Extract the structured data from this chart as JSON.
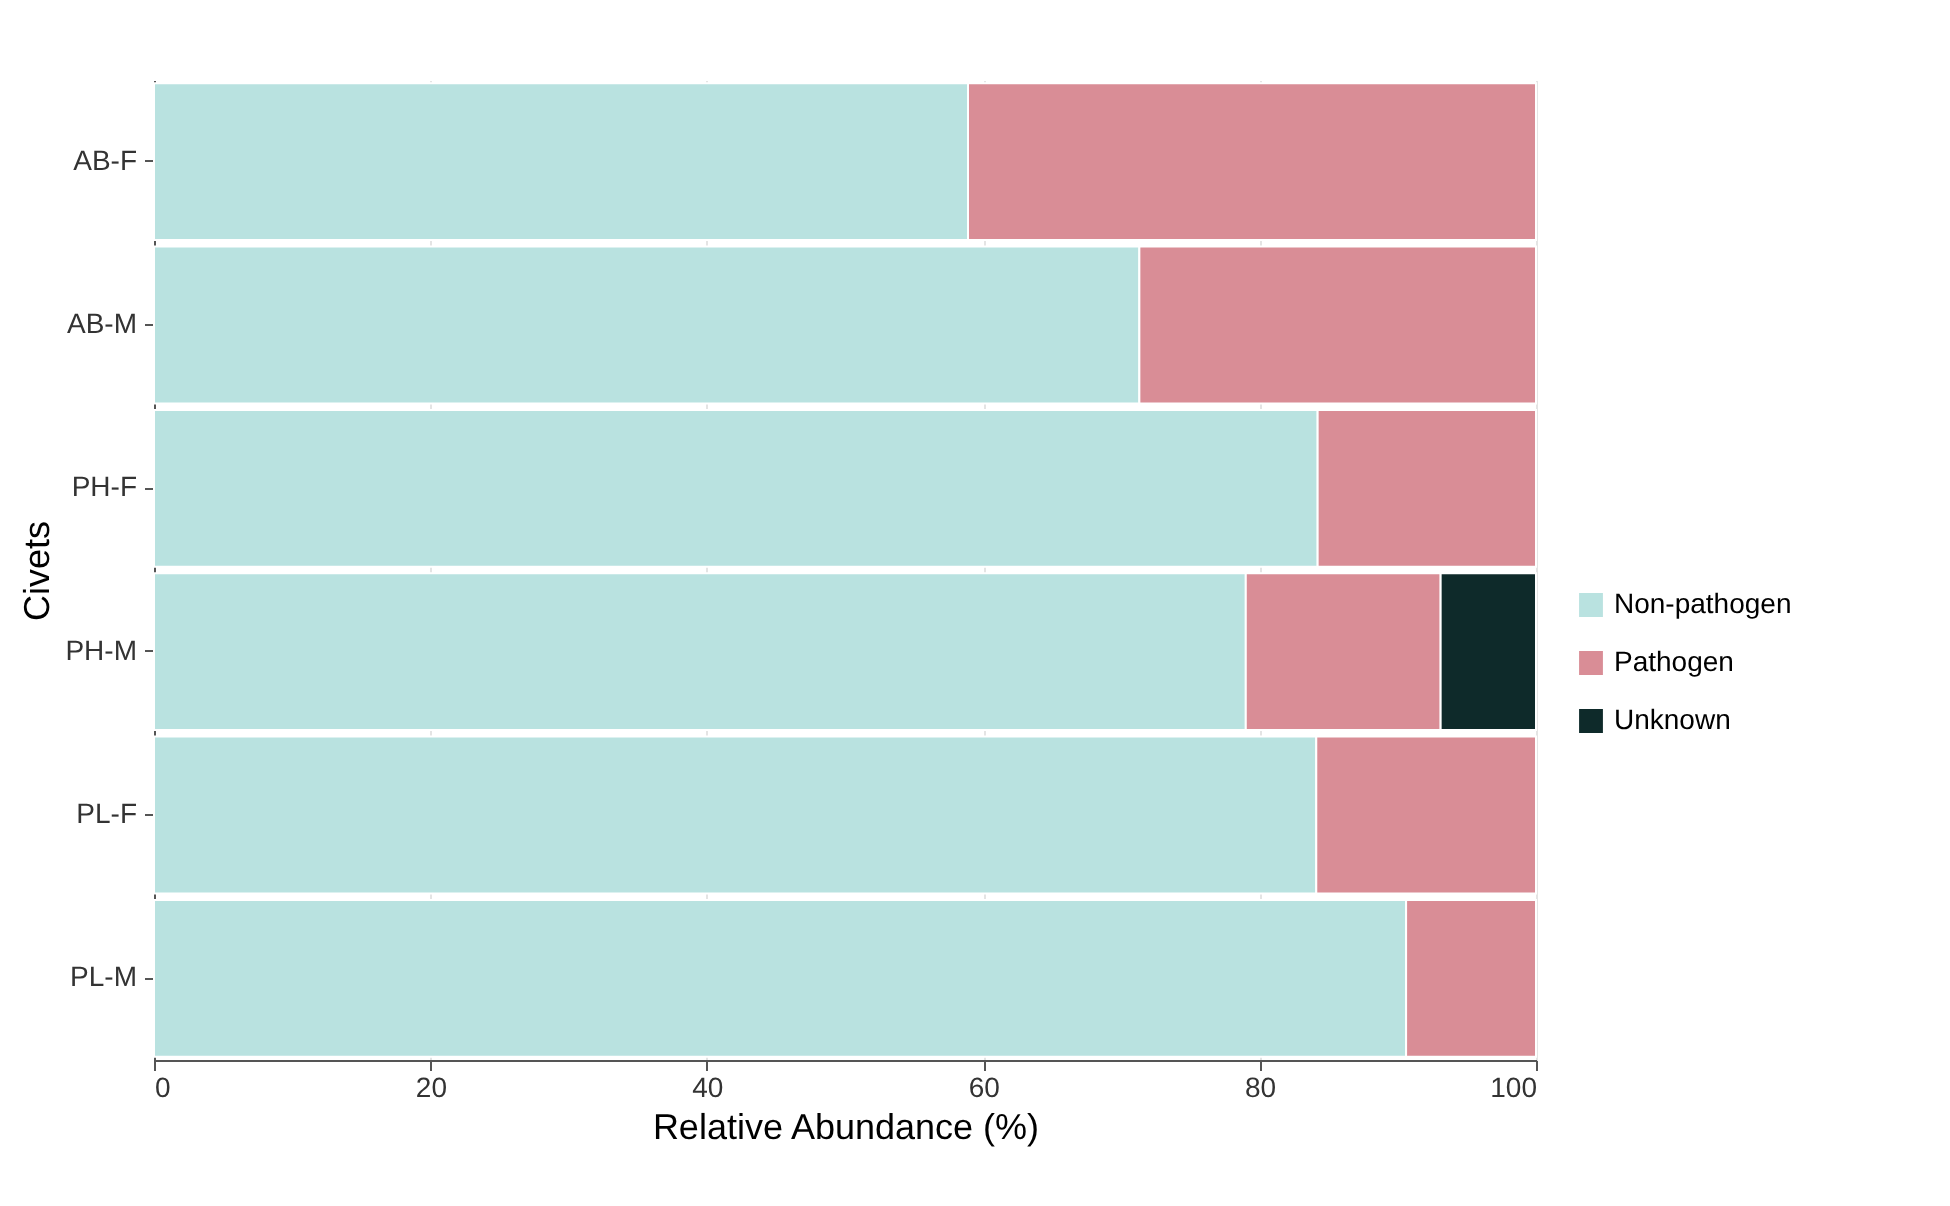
{
  "chart_data": {
    "type": "bar",
    "orientation": "horizontal",
    "stacked": true,
    "xlabel": "Relative Abundance (%)",
    "ylabel": "Civets",
    "categories": [
      "AB-F",
      "AB-M",
      "PH-F",
      "PH-M",
      "PL-F",
      "PL-M"
    ],
    "series": [
      {
        "name": "Non-pathogen",
        "color": "#b9e2e0",
        "values": [
          58.9,
          71.3,
          84.2,
          79.0,
          84.1,
          90.6
        ]
      },
      {
        "name": "Pathogen",
        "color": "#d98d96",
        "values": [
          41.1,
          28.7,
          15.8,
          14.1,
          15.9,
          9.4
        ]
      },
      {
        "name": "Unknown",
        "color": "#0e2a2a",
        "values": [
          null,
          null,
          null,
          6.9,
          null,
          null
        ]
      }
    ],
    "xlim": [
      0,
      100
    ],
    "xticks": [
      0,
      20,
      40,
      60,
      80,
      100
    ],
    "grid": "x",
    "legend": "right"
  }
}
